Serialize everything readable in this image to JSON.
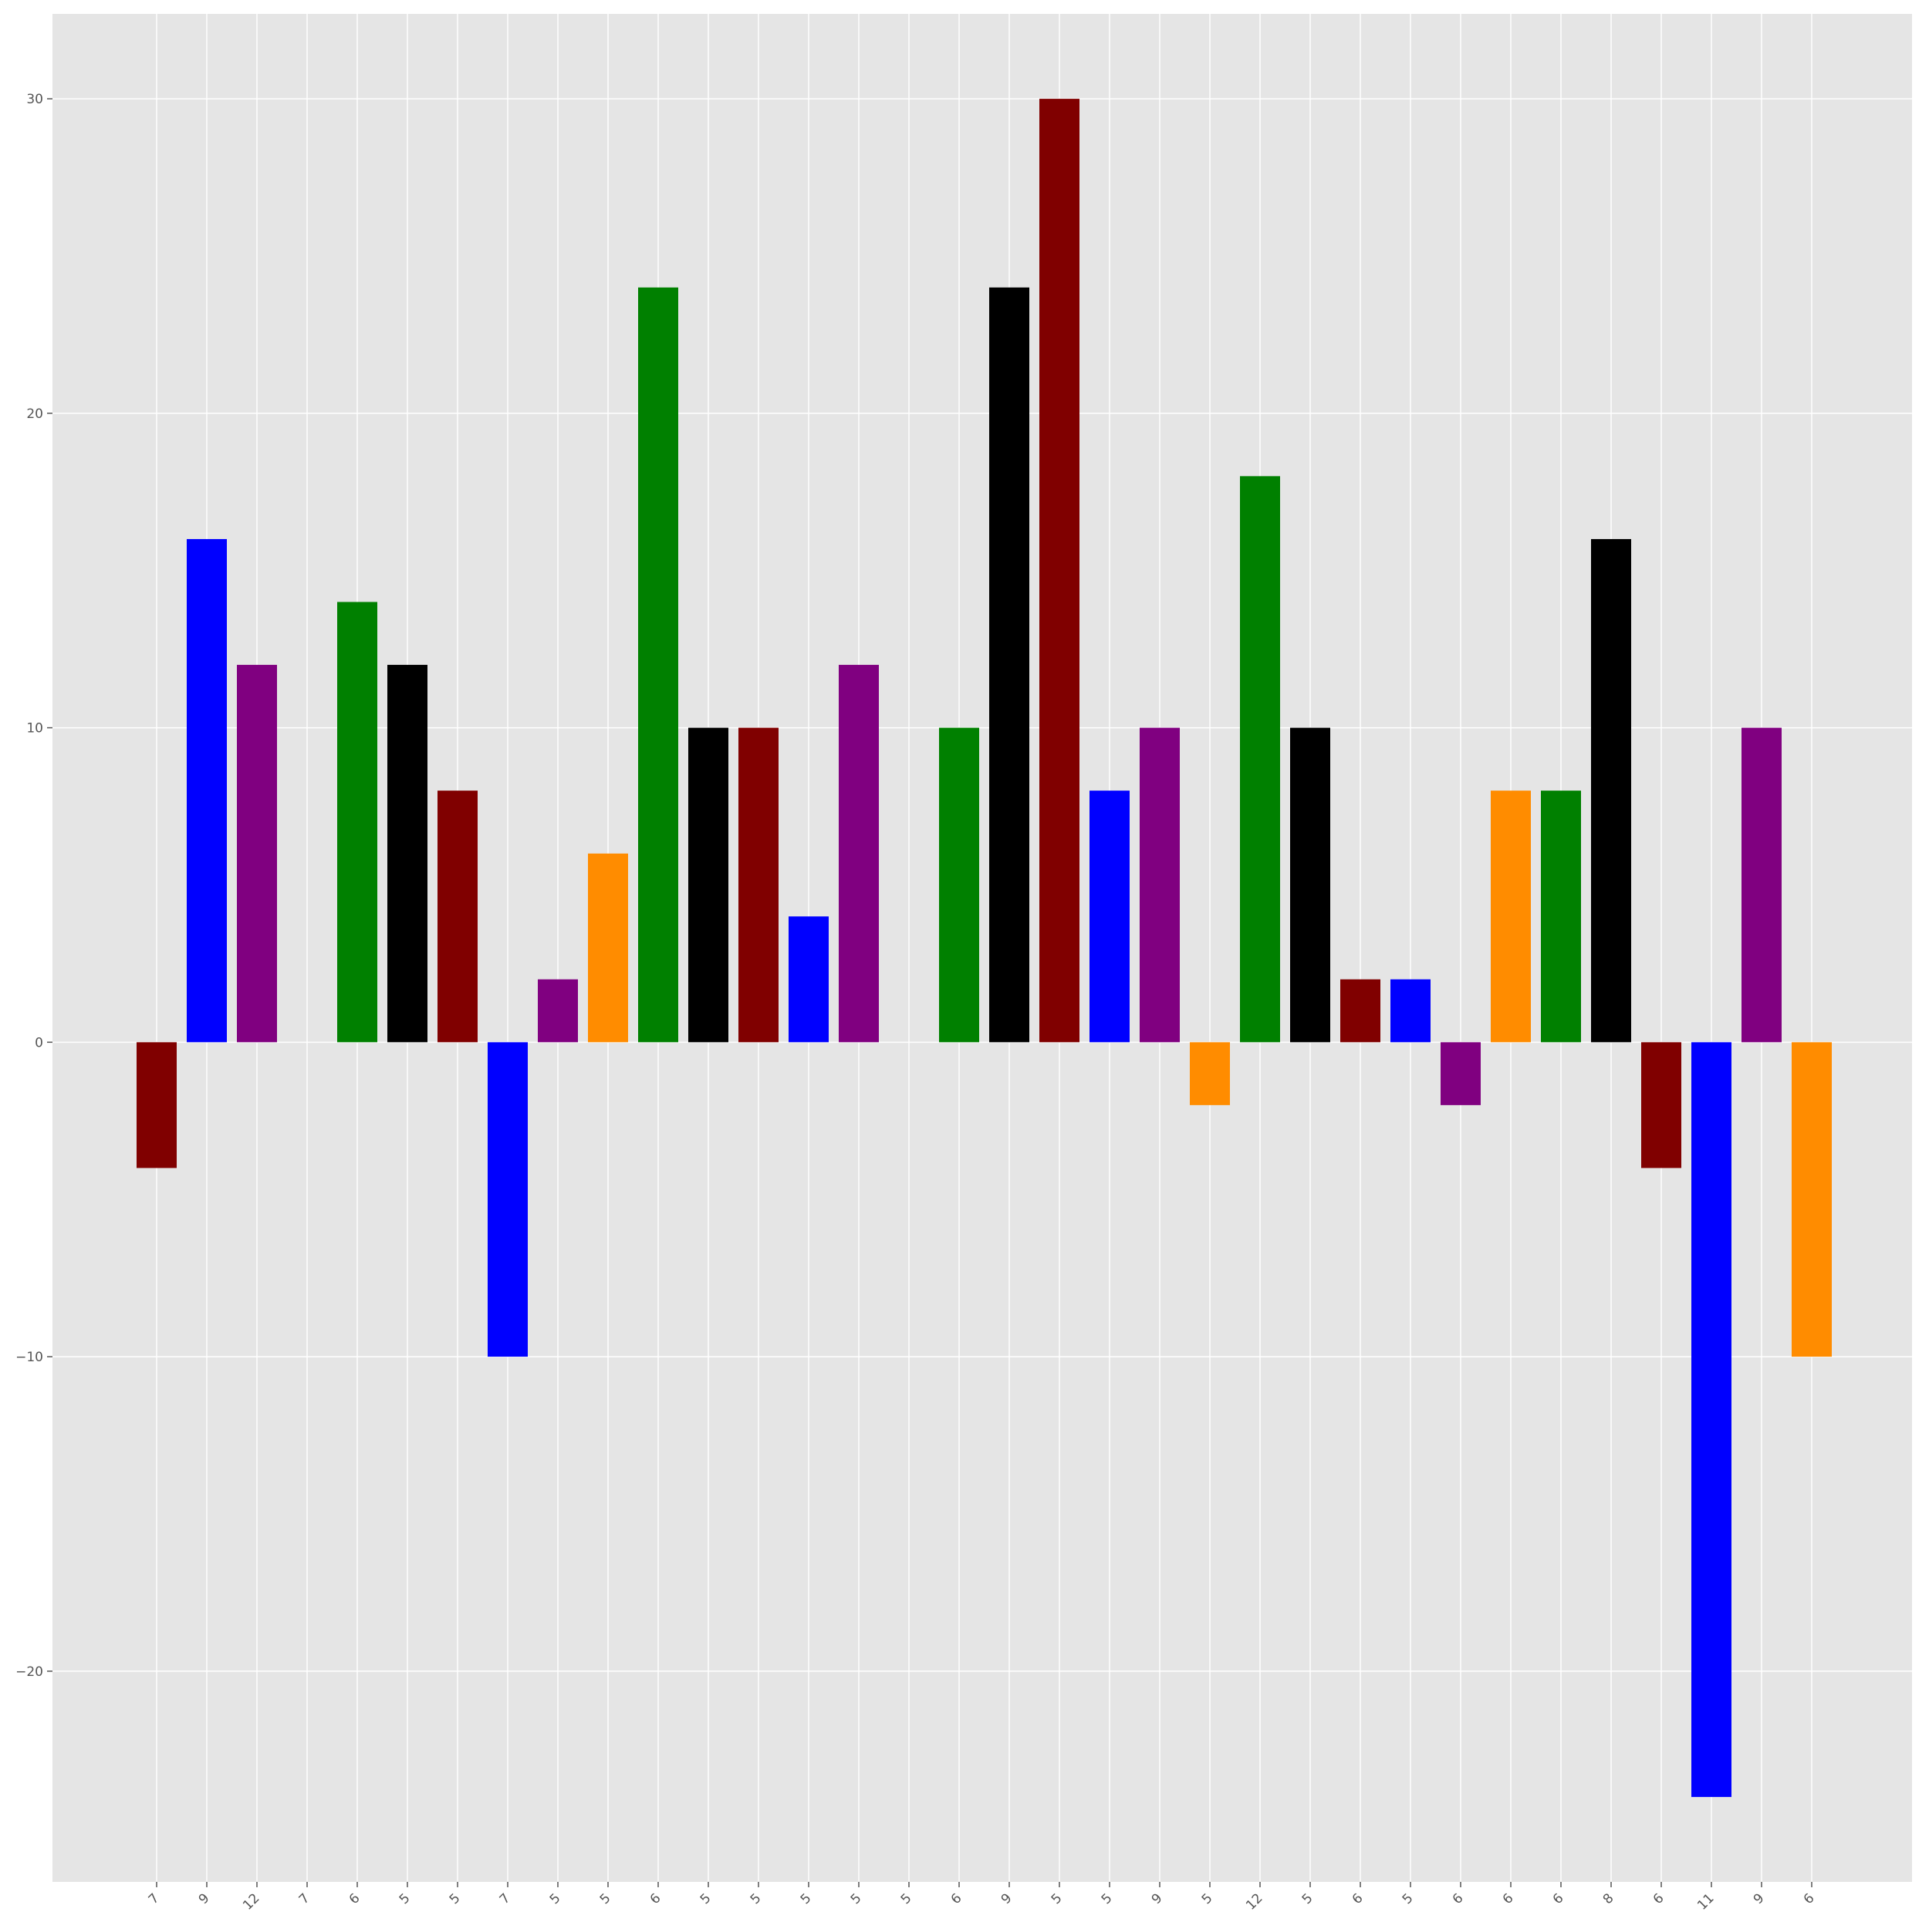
{
  "chart_data": {
    "type": "bar",
    "title": "",
    "xlabel": "",
    "ylabel": "",
    "categories": [
      "7",
      "9",
      "12",
      "7",
      "6",
      "5",
      "5",
      "7",
      "5",
      "5",
      "6",
      "5",
      "5",
      "5",
      "5",
      "5",
      "6",
      "9",
      "5",
      "5",
      "9",
      "5",
      "12",
      "5",
      "6",
      "5",
      "6",
      "6",
      "6",
      "8",
      "6",
      "11",
      "9",
      "6"
    ],
    "values": [
      -4,
      16,
      12,
      0,
      14,
      12,
      8,
      -10,
      2,
      6,
      24,
      10,
      10,
      4,
      12,
      0,
      10,
      24,
      30,
      8,
      10,
      -2,
      18,
      10,
      2,
      2,
      -2,
      8,
      8,
      16,
      -4,
      -24,
      10,
      -10
    ],
    "bar_colors": [
      "#800000",
      "#0000ff",
      "#800080",
      "#ff8c00",
      "#008000",
      "#000000",
      "#800000",
      "#0000ff",
      "#800080",
      "#ff8c00",
      "#008000",
      "#000000",
      "#800000",
      "#0000ff",
      "#800080",
      "#ff8c00",
      "#008000",
      "#000000",
      "#800000",
      "#0000ff",
      "#800080",
      "#ff8c00",
      "#008000",
      "#000000",
      "#800000",
      "#0000ff",
      "#800080",
      "#ff8c00",
      "#008000",
      "#000000",
      "#800000",
      "#0000ff",
      "#800080",
      "#ff8c00"
    ],
    "yticks": [
      -20,
      -10,
      0,
      10,
      20,
      30
    ],
    "ylim": [
      -26.7,
      32.7
    ],
    "grid": true,
    "style": "ggplot",
    "background_color": "#e5e5e5",
    "grid_color": "#ffffff"
  }
}
